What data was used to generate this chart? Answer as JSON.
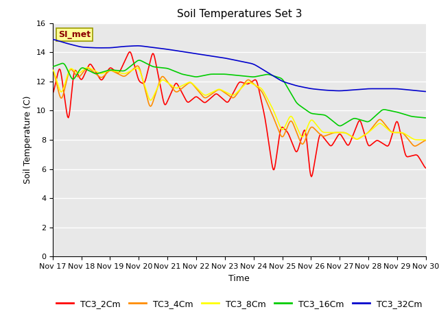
{
  "title": "Soil Temperatures Set 3",
  "xlabel": "Time",
  "ylabel": "Soil Temperature (C)",
  "ylim": [
    0,
    16
  ],
  "yticks": [
    0,
    2,
    4,
    6,
    8,
    10,
    12,
    14,
    16
  ],
  "x_labels": [
    "Nov 17",
    "Nov 18",
    "Nov 19",
    "Nov 20",
    "Nov 21",
    "Nov 22",
    "Nov 23",
    "Nov 24",
    "Nov 25",
    "Nov 26",
    "Nov 27",
    "Nov 28",
    "Nov 29",
    "Nov 30"
  ],
  "annotation_text": "SI_met",
  "annotation_color": "#8B0000",
  "annotation_bg": "#FFFF99",
  "line_colors": {
    "TC3_2Cm": "#FF0000",
    "TC3_4Cm": "#FF8C00",
    "TC3_8Cm": "#FFFF00",
    "TC3_16Cm": "#00CC00",
    "TC3_32Cm": "#0000CC"
  },
  "bg_color": "#E8E8E8",
  "title_fontsize": 11,
  "axis_fontsize": 9,
  "tick_fontsize": 8,
  "legend_fontsize": 9
}
